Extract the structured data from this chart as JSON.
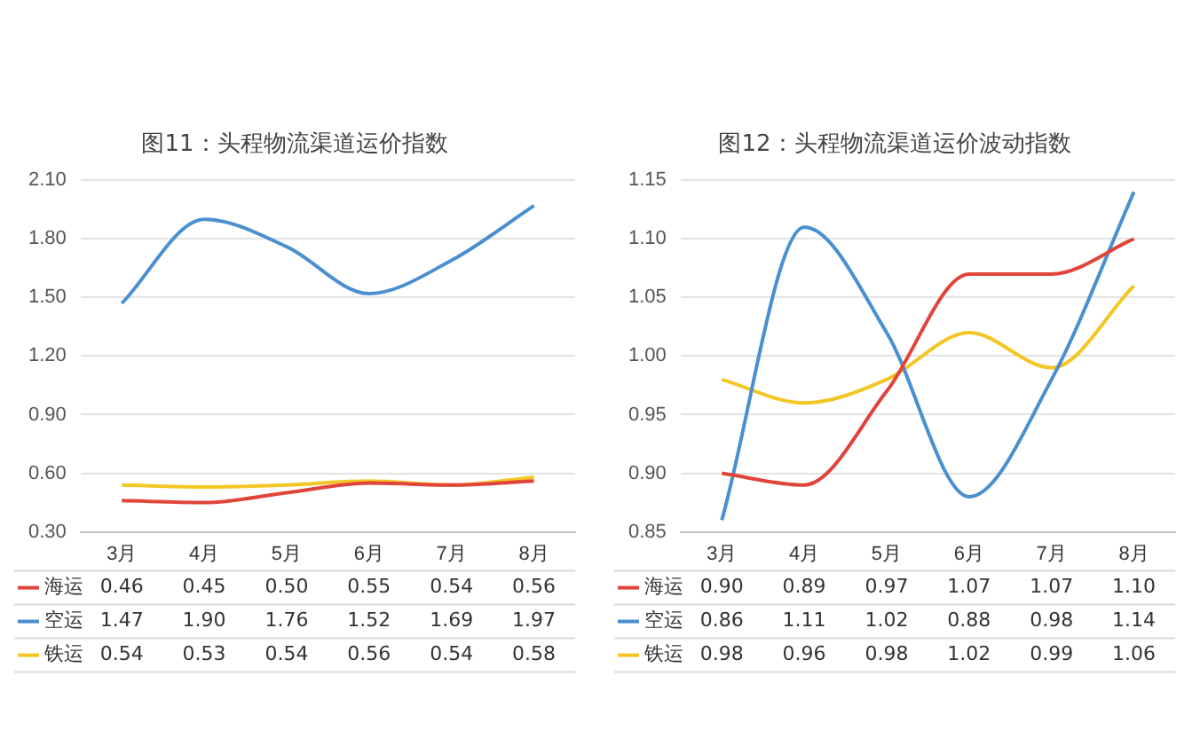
{
  "chart_data": [
    {
      "type": "line",
      "title": "图11：头程物流渠道运价指数",
      "categories": [
        "3月",
        "4月",
        "5月",
        "6月",
        "7月",
        "8月"
      ],
      "series": [
        {
          "name": "海运",
          "color": "#e0443a",
          "values": [
            0.46,
            0.45,
            0.5,
            0.55,
            0.54,
            0.56
          ],
          "value_labels": [
            "0.46",
            "0.45",
            "0.50",
            "0.55",
            "0.54",
            "0.56"
          ]
        },
        {
          "name": "空运",
          "color": "#4a8fd0",
          "values": [
            1.47,
            1.9,
            1.76,
            1.52,
            1.69,
            1.97
          ],
          "value_labels": [
            "1.47",
            "1.90",
            "1.76",
            "1.52",
            "1.69",
            "1.97"
          ]
        },
        {
          "name": "铁运",
          "color": "#f3c623",
          "values": [
            0.54,
            0.53,
            0.54,
            0.56,
            0.54,
            0.58
          ],
          "value_labels": [
            "0.54",
            "0.53",
            "0.54",
            "0.56",
            "0.54",
            "0.58"
          ]
        }
      ],
      "ylim": [
        0.3,
        2.1
      ],
      "yticks": [
        {
          "value": 0.3,
          "label": "0.30"
        },
        {
          "value": 0.6,
          "label": "0.60"
        },
        {
          "value": 0.9,
          "label": "0.90"
        },
        {
          "value": 1.2,
          "label": "1.20"
        },
        {
          "value": 1.5,
          "label": "1.50"
        },
        {
          "value": 1.8,
          "label": "1.80"
        },
        {
          "value": 2.1,
          "label": "2.10"
        }
      ],
      "grid": "y",
      "legend": "bottom",
      "marker": "none"
    },
    {
      "type": "line",
      "title": "图12：头程物流渠道运价波动指数",
      "categories": [
        "3月",
        "4月",
        "5月",
        "6月",
        "7月",
        "8月"
      ],
      "series": [
        {
          "name": "海运",
          "color": "#e0443a",
          "values": [
            0.9,
            0.89,
            0.97,
            1.07,
            1.07,
            1.1
          ],
          "value_labels": [
            "0.90",
            "0.89",
            "0.97",
            "1.07",
            "1.07",
            "1.10"
          ]
        },
        {
          "name": "空运",
          "color": "#4a8fd0",
          "values": [
            0.86,
            1.11,
            1.02,
            0.88,
            0.98,
            1.14
          ],
          "value_labels": [
            "0.86",
            "1.11",
            "1.02",
            "0.88",
            "0.98",
            "1.14"
          ]
        },
        {
          "name": "铁运",
          "color": "#f3c623",
          "values": [
            0.98,
            0.96,
            0.98,
            1.02,
            0.99,
            1.06
          ],
          "value_labels": [
            "0.98",
            "0.96",
            "0.98",
            "1.02",
            "0.99",
            "1.06"
          ]
        }
      ],
      "ylim": [
        0.85,
        1.15
      ],
      "yticks": [
        {
          "value": 0.85,
          "label": "0.85"
        },
        {
          "value": 0.9,
          "label": "0.90"
        },
        {
          "value": 0.95,
          "label": "0.95"
        },
        {
          "value": 1.0,
          "label": "1.00"
        },
        {
          "value": 1.05,
          "label": "1.05"
        },
        {
          "value": 1.1,
          "label": "1.10"
        },
        {
          "value": 1.15,
          "label": "1.15"
        }
      ],
      "grid": "y",
      "legend": "bottom",
      "marker": "none"
    }
  ]
}
